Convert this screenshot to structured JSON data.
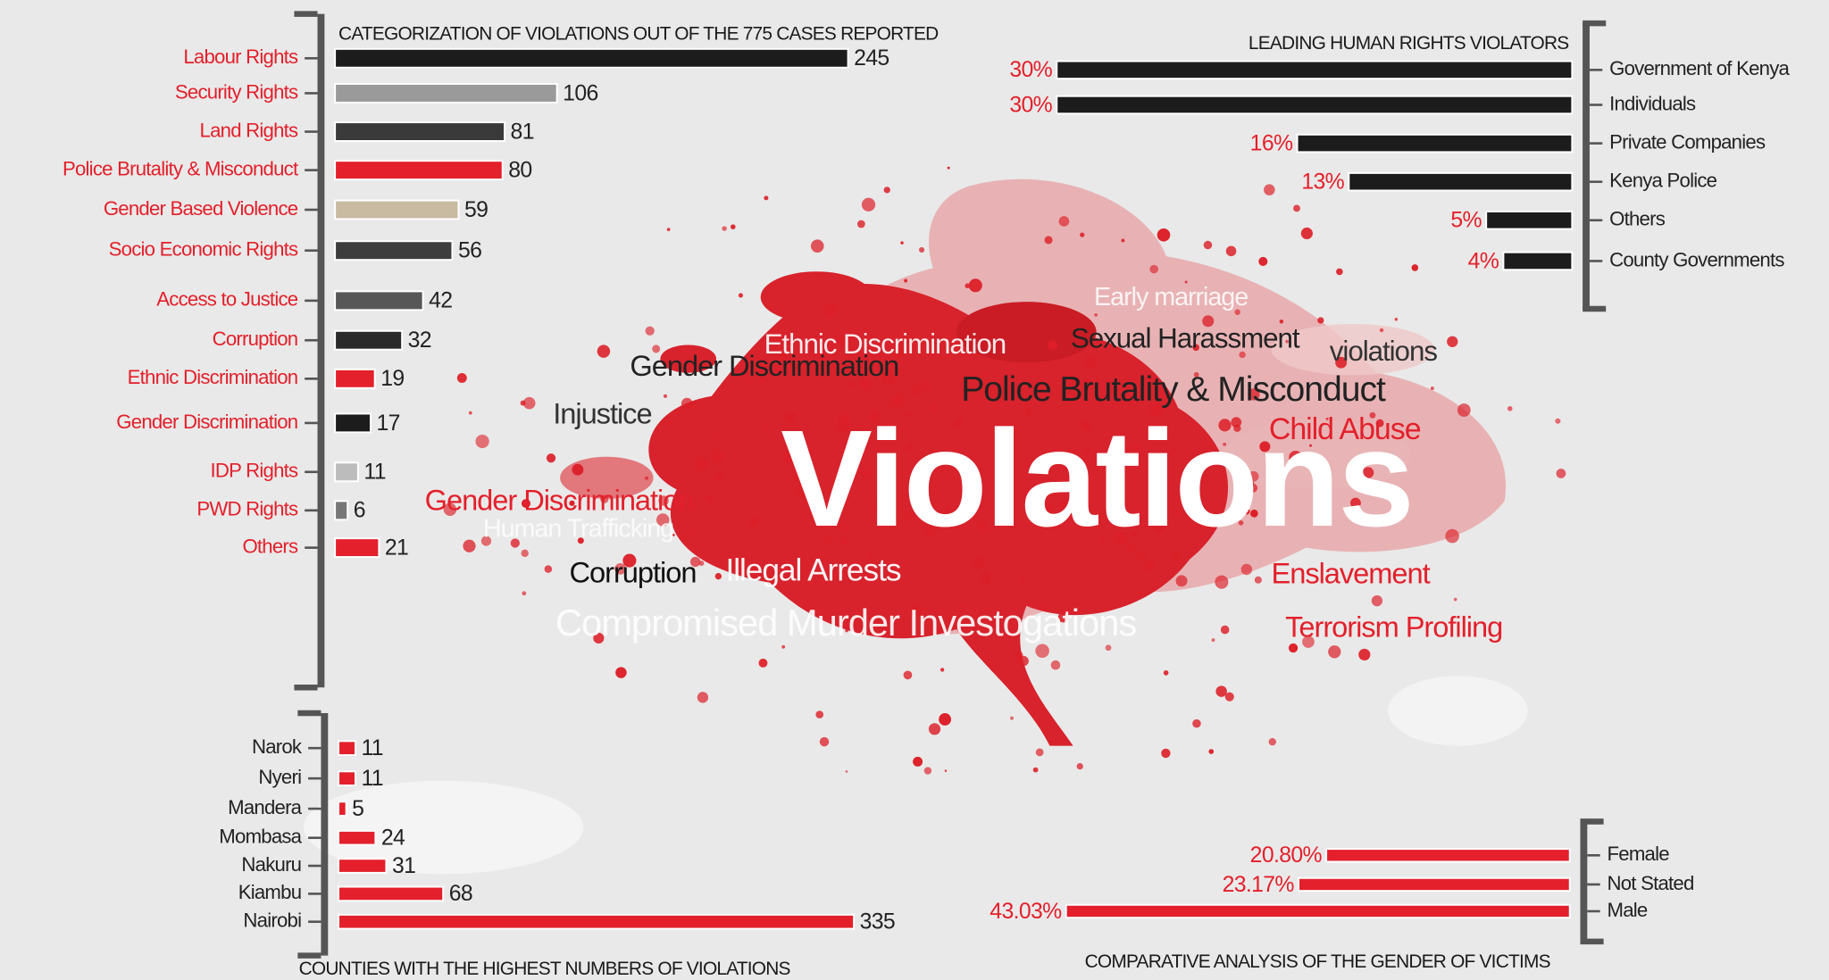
{
  "chart_data": [
    {
      "type": "bar",
      "orientation": "horizontal",
      "title": "CATEGORIZATION OF VIOLATIONS OUT OF THE 775 CASES REPORTED",
      "categories": [
        "Labour Rights",
        "Security Rights",
        "Land Rights",
        "Police Brutality & Misconduct",
        "Gender Based Violence",
        "Socio Economic Rights",
        "Access to Justice",
        "Corruption",
        "Ethnic Discrimination",
        "Gender Discrimination",
        "IDP Rights",
        "PWD Rights",
        "Others"
      ],
      "values": [
        245,
        106,
        81,
        80,
        59,
        56,
        42,
        32,
        19,
        17,
        11,
        6,
        21
      ],
      "colors": [
        "#1c1c1c",
        "#9a9a9a",
        "#3a3a3a",
        "#e3202b",
        "#c9bba2",
        "#3d3d3d",
        "#575757",
        "#2a2a2a",
        "#e3202b",
        "#1c1c1c",
        "#bcbcbc",
        "#777777",
        "#e3202b"
      ]
    },
    {
      "type": "bar",
      "orientation": "horizontal",
      "title": "LEADING HUMAN RIGHTS VIOLATORS",
      "categories": [
        "Government of Kenya",
        "Individuals",
        "Private Companies",
        "Kenya Police",
        "Others",
        "County Governments"
      ],
      "values": [
        30,
        30,
        16,
        13,
        5,
        4
      ],
      "value_labels": [
        "30%",
        "30%",
        "16%",
        "13%",
        "5%",
        "4%"
      ],
      "color": "#1c1c1c"
    },
    {
      "type": "bar",
      "orientation": "horizontal",
      "title": "COUNTIES WITH THE HIGHEST NUMBERS OF VIOLATIONS",
      "categories": [
        "Narok",
        "Nyeri",
        "Mandera",
        "Mombasa",
        "Nakuru",
        "Kiambu",
        "Nairobi"
      ],
      "values": [
        11,
        11,
        5,
        24,
        31,
        68,
        335
      ],
      "color": "#e3202b"
    },
    {
      "type": "bar",
      "orientation": "horizontal",
      "title": "COMPARATIVE ANALYSIS OF THE GENDER OF VICTIMS",
      "categories": [
        "Female",
        "Not Stated",
        "Male"
      ],
      "values": [
        20.8,
        23.17,
        43.03
      ],
      "value_labels": [
        "20.80%",
        "23.17%",
        "43.03%"
      ],
      "color": "#e3202b"
    }
  ],
  "word_cloud": {
    "headline": "Violations",
    "words": [
      "Early marriage",
      "Ethnic Discrimination",
      "Sexual Harassment",
      "violations",
      "Gender Discrimination",
      "Police Brutality & Misconduct",
      "Injustice",
      "Child Abuse",
      "Gender Discrimination",
      "Human Trafficking",
      "Corruption",
      "Illegal Arrests",
      "Enslavement",
      "Compromised Murder Investogations",
      "Terrorism Profiling"
    ]
  }
}
